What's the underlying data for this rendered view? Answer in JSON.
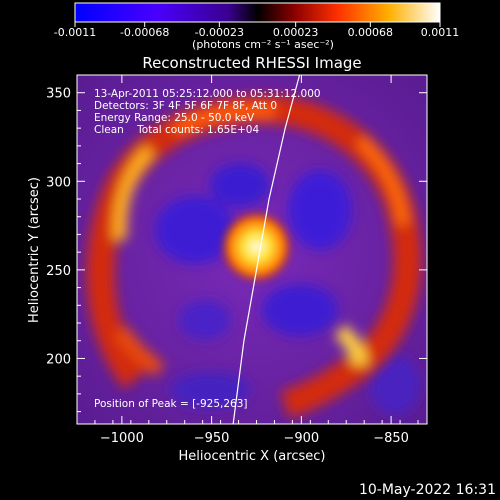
{
  "colorbar": {
    "tick_labels": [
      "-0.0011",
      "-0.00068",
      "-0.00023",
      "0.00023",
      "0.00068",
      "0.0011"
    ],
    "tick_values": [
      -0.0011,
      -0.00068,
      -0.00023,
      0.00023,
      0.00068,
      0.0011
    ],
    "range": [
      -0.0011,
      0.0011
    ],
    "unit_label": "(photons cm⁻² s⁻¹ asec⁻²)"
  },
  "chart_data": {
    "type": "heatmap",
    "title": "Reconstructed RHESSI Image",
    "xlabel": "Heliocentric X (arcsec)",
    "ylabel": "Heliocentric Y (arcsec)",
    "xlim": [
      -1025,
      -830
    ],
    "ylim": [
      163,
      360
    ],
    "x_ticks": [
      -1000,
      -950,
      -900,
      -850
    ],
    "y_ticks": [
      200,
      250,
      300,
      350
    ],
    "peak": {
      "x": -925,
      "y": 263
    },
    "limb_curve": [
      [
        -938,
        163
      ],
      [
        -932,
        210
      ],
      [
        -925,
        250
      ],
      [
        -918,
        290
      ],
      [
        -909,
        330
      ],
      [
        -901,
        360
      ]
    ],
    "annotations": [
      "13-Apr-2011 05:25:12.000 to 05:31:12.000",
      "Detectors: 3F 4F 5F 6F 7F 8F, Att 0",
      "Energy Range: 25.0 - 50.0 keV",
      "Clean    Total counts: 1.65E+04"
    ],
    "peak_label": "Position of Peak = [-925,263]",
    "colors": {
      "background": "#6a22a8",
      "negative": "#3c18d8",
      "ring": "#e83b10",
      "peak": "#fff6b0"
    }
  },
  "footer": {
    "timestamp": "10-May-2022 16:31"
  }
}
